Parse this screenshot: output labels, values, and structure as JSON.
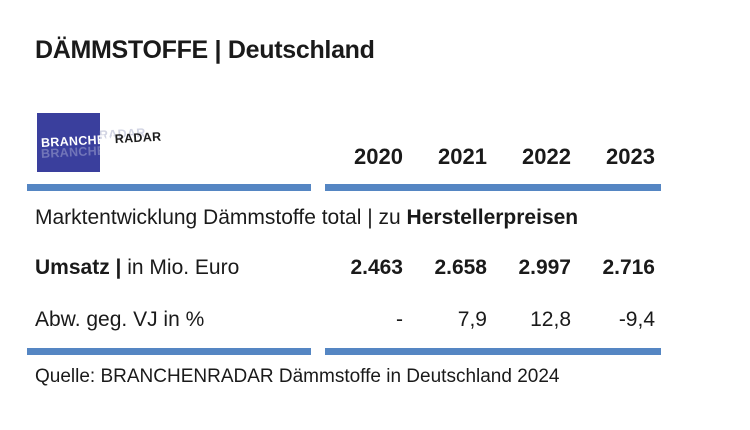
{
  "title": "DÄMMSTOFFE | Deutschland",
  "logo": {
    "part1": "BRANCHEN",
    "part2": "RADAR"
  },
  "colors": {
    "bar_blue": "#5586c3",
    "logo_blue": "#3a3f9d",
    "text": "#1a1a1a"
  },
  "table": {
    "years": [
      "2020",
      "2021",
      "2022",
      "2023"
    ],
    "section_label": {
      "regular": "Marktentwicklung Dämmstoffe total | zu ",
      "bold": "Herstellerpreisen"
    },
    "rows": [
      {
        "label_bold": "Umsatz | ",
        "label_regular": "in Mio. Euro",
        "values": [
          "2.463",
          "2.658",
          "2.997",
          "2.716"
        ]
      },
      {
        "label_bold": "",
        "label_regular": "Abw. geg. VJ in %",
        "values": [
          "-",
          "7,9",
          "12,8",
          "-9,4"
        ]
      }
    ]
  },
  "source": "Quelle: BRANCHENRADAR Dämmstoffe in Deutschland 2024"
}
